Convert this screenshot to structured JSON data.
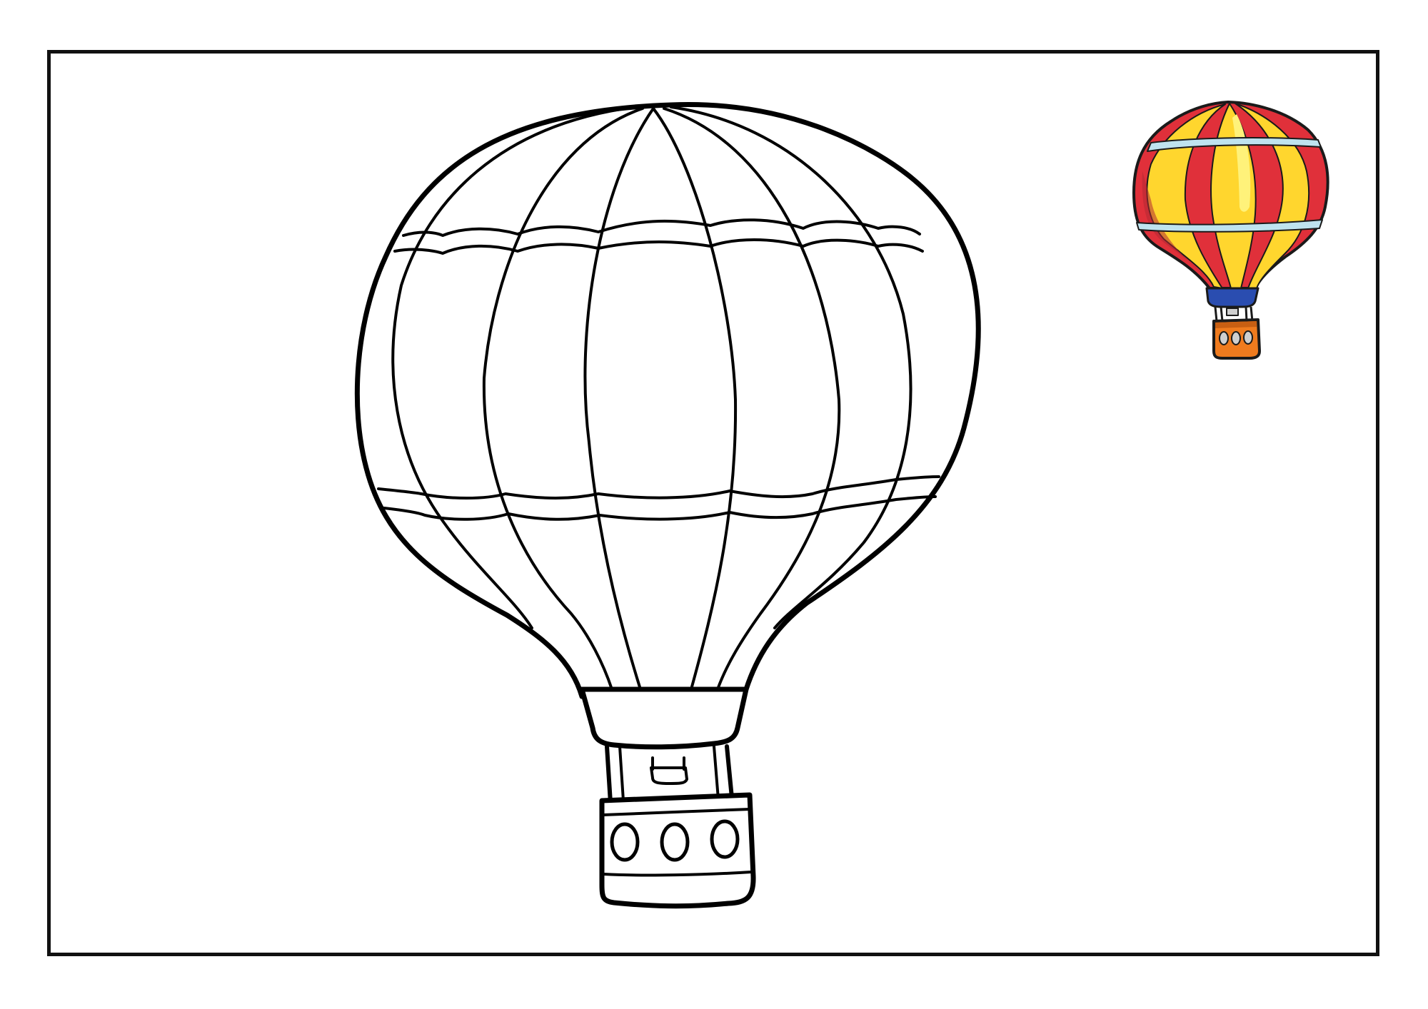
{
  "page": {
    "background": "#ffffff",
    "border_color": "#111111"
  },
  "outline_balloon": {
    "line_color": "#000000",
    "fill": "#ffffff"
  },
  "reference_balloon": {
    "colors": {
      "red": "#e0303a",
      "dark_red": "#b22a33",
      "yellow": "#ffd62e",
      "light_yellow": "#fff27a",
      "band": "#bfe3ef",
      "collar": "#2a4db0",
      "basket": "#ef7b1e",
      "basket_dark": "#c85f12",
      "outline": "#1a1a1a"
    }
  }
}
